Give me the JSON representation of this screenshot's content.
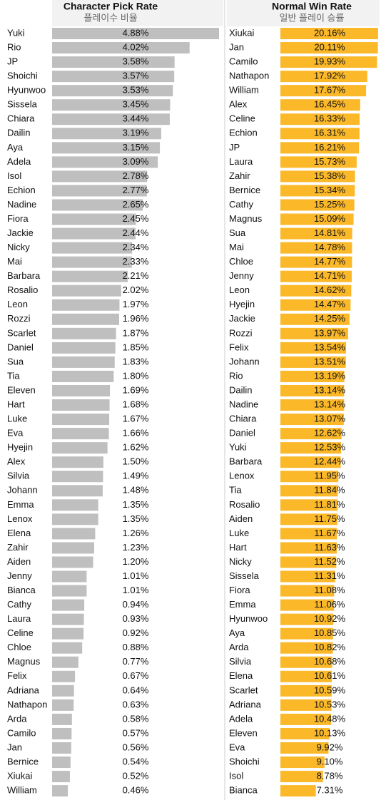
{
  "chart_data": [
    {
      "type": "bar",
      "orientation": "horizontal",
      "title": "Character Pick Rate",
      "subtitle": "플레이수 비율",
      "color": "#bfbfbf",
      "categories": [
        "Yuki",
        "Rio",
        "JP",
        "Shoichi",
        "Hyunwoo",
        "Sissela",
        "Chiara",
        "Dailin",
        "Aya",
        "Adela",
        "Isol",
        "Echion",
        "Nadine",
        "Fiora",
        "Jackie",
        "Nicky",
        "Mai",
        "Barbara",
        "Rosalio",
        "Leon",
        "Rozzi",
        "Scarlet",
        "Daniel",
        "Sua",
        "Tia",
        "Eleven",
        "Hart",
        "Luke",
        "Eva",
        "Hyejin",
        "Alex",
        "Silvia",
        "Johann",
        "Emma",
        "Lenox",
        "Elena",
        "Zahir",
        "Aiden",
        "Jenny",
        "Bianca",
        "Cathy",
        "Laura",
        "Celine",
        "Chloe",
        "Magnus",
        "Felix",
        "Adriana",
        "Nathapon",
        "Arda",
        "Camilo",
        "Jan",
        "Bernice",
        "Xiukai",
        "William"
      ],
      "values": [
        4.88,
        4.02,
        3.58,
        3.57,
        3.53,
        3.45,
        3.44,
        3.19,
        3.15,
        3.09,
        2.78,
        2.77,
        2.65,
        2.45,
        2.44,
        2.34,
        2.33,
        2.21,
        2.02,
        1.97,
        1.96,
        1.87,
        1.85,
        1.83,
        1.8,
        1.69,
        1.68,
        1.67,
        1.66,
        1.62,
        1.5,
        1.49,
        1.48,
        1.35,
        1.35,
        1.26,
        1.23,
        1.2,
        1.01,
        1.01,
        0.94,
        0.93,
        0.92,
        0.88,
        0.77,
        0.67,
        0.64,
        0.63,
        0.58,
        0.57,
        0.56,
        0.54,
        0.52,
        0.46
      ],
      "value_labels": [
        "4.88%",
        "4.02%",
        "3.58%",
        "3.57%",
        "3.53%",
        "3.45%",
        "3.44%",
        "3.19%",
        "3.15%",
        "3.09%",
        "2.78%",
        "2.77%",
        "2.65%",
        "2.45%",
        "2.44%",
        "2.34%",
        "2.33%",
        "2.21%",
        "2.02%",
        "1.97%",
        "1.96%",
        "1.87%",
        "1.85%",
        "1.83%",
        "1.80%",
        "1.69%",
        "1.68%",
        "1.67%",
        "1.66%",
        "1.62%",
        "1.50%",
        "1.49%",
        "1.48%",
        "1.35%",
        "1.35%",
        "1.26%",
        "1.23%",
        "1.20%",
        "1.01%",
        "1.01%",
        "0.94%",
        "0.93%",
        "0.92%",
        "0.88%",
        "0.77%",
        "0.67%",
        "0.64%",
        "0.63%",
        "0.58%",
        "0.57%",
        "0.56%",
        "0.54%",
        "0.52%",
        "0.46%"
      ]
    },
    {
      "type": "bar",
      "orientation": "horizontal",
      "title": "Normal Win Rate",
      "subtitle": "일반 플레이 승률",
      "color": "#fbb829",
      "categories": [
        "Xiukai",
        "Jan",
        "Camilo",
        "Nathapon",
        "William",
        "Alex",
        "Celine",
        "Echion",
        "JP",
        "Laura",
        "Zahir",
        "Bernice",
        "Cathy",
        "Magnus",
        "Sua",
        "Mai",
        "Chloe",
        "Jenny",
        "Leon",
        "Hyejin",
        "Jackie",
        "Rozzi",
        "Felix",
        "Johann",
        "Rio",
        "Dailin",
        "Nadine",
        "Chiara",
        "Daniel",
        "Yuki",
        "Barbara",
        "Lenox",
        "Tia",
        "Rosalio",
        "Aiden",
        "Luke",
        "Hart",
        "Nicky",
        "Sissela",
        "Fiora",
        "Emma",
        "Hyunwoo",
        "Aya",
        "Arda",
        "Silvia",
        "Elena",
        "Scarlet",
        "Adriana",
        "Adela",
        "Eleven",
        "Eva",
        "Shoichi",
        "Isol",
        "Bianca"
      ],
      "values": [
        20.16,
        20.11,
        19.93,
        17.92,
        17.67,
        16.45,
        16.33,
        16.31,
        16.21,
        15.73,
        15.38,
        15.34,
        15.25,
        15.09,
        14.81,
        14.78,
        14.77,
        14.71,
        14.62,
        14.47,
        14.25,
        13.97,
        13.54,
        13.51,
        13.19,
        13.14,
        13.14,
        13.07,
        12.62,
        12.53,
        12.44,
        11.95,
        11.84,
        11.81,
        11.75,
        11.67,
        11.63,
        11.52,
        11.31,
        11.08,
        11.06,
        10.92,
        10.85,
        10.82,
        10.68,
        10.61,
        10.59,
        10.53,
        10.48,
        10.13,
        9.92,
        9.1,
        8.78,
        7.31
      ],
      "value_labels": [
        "20.16%",
        "20.11%",
        "19.93%",
        "17.92%",
        "17.67%",
        "16.45%",
        "16.33%",
        "16.31%",
        "16.21%",
        "15.73%",
        "15.38%",
        "15.34%",
        "15.25%",
        "15.09%",
        "14.81%",
        "14.78%",
        "14.77%",
        "14.71%",
        "14.62%",
        "14.47%",
        "14.25%",
        "13.97%",
        "13.54%",
        "13.51%",
        "13.19%",
        "13.14%",
        "13.14%",
        "13.07%",
        "12.62%",
        "12.53%",
        "12.44%",
        "11.95%",
        "11.84%",
        "11.81%",
        "11.75%",
        "11.67%",
        "11.63%",
        "11.52%",
        "11.31%",
        "11.08%",
        "11.06%",
        "10.92%",
        "10.85%",
        "10.82%",
        "10.68%",
        "10.61%",
        "10.59%",
        "10.53%",
        "10.48%",
        "10.13%",
        "9.92%",
        "9.10%",
        "8.78%",
        "7.31%"
      ]
    }
  ]
}
